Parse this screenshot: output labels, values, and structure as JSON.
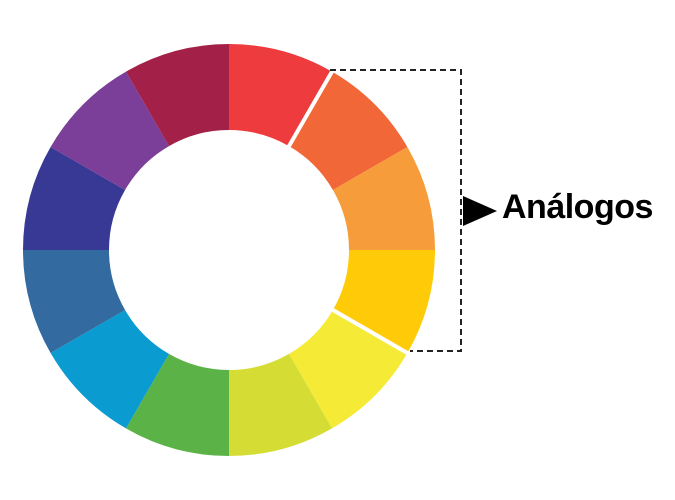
{
  "diagram": {
    "type": "color-wheel",
    "segments": [
      {
        "name": "red",
        "color": "#EE3B3E"
      },
      {
        "name": "red-orange",
        "color": "#F26737"
      },
      {
        "name": "orange",
        "color": "#F69C3A"
      },
      {
        "name": "yellow-orange",
        "color": "#FFCB08"
      },
      {
        "name": "yellow",
        "color": "#F5EA35"
      },
      {
        "name": "yellow-green",
        "color": "#D5DD35"
      },
      {
        "name": "green",
        "color": "#5BB347"
      },
      {
        "name": "blue-green",
        "color": "#0A9BD0"
      },
      {
        "name": "blue",
        "color": "#336A9F"
      },
      {
        "name": "blue-violet",
        "color": "#383895"
      },
      {
        "name": "violet",
        "color": "#7B3E99"
      },
      {
        "name": "red-violet",
        "color": "#A32148"
      }
    ],
    "highlighted_segments": [
      "red-orange",
      "orange",
      "yellow-orange"
    ],
    "callout": {
      "label": "Análogos",
      "arrow_icon": "triangle-arrow-right-icon"
    }
  }
}
